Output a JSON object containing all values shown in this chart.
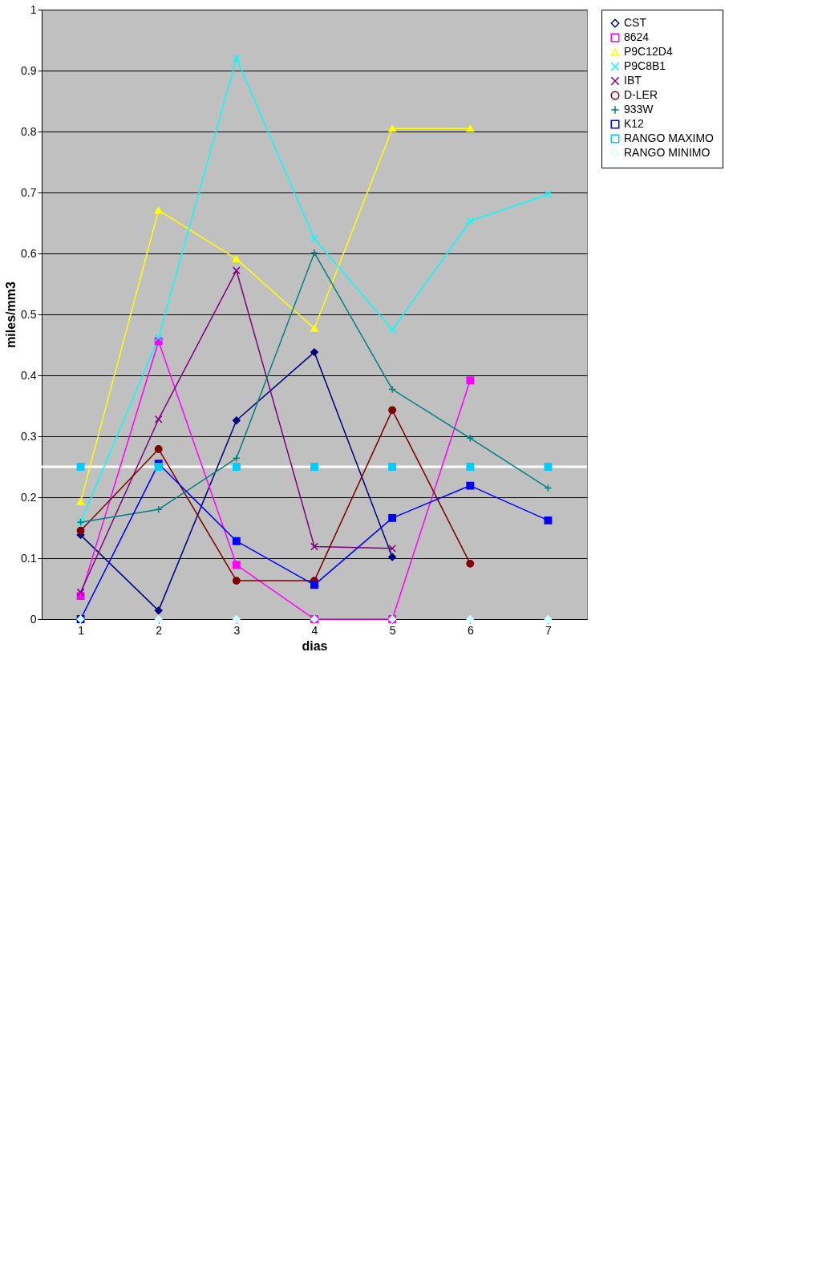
{
  "chart_data": {
    "type": "line",
    "xlabel": "dias",
    "ylabel": "miles/mm3",
    "categories": [
      "1",
      "2",
      "3",
      "4",
      "5",
      "6",
      "7"
    ],
    "ylim": [
      0,
      1
    ],
    "yticks": [
      0,
      0.1,
      0.2,
      0.3,
      0.4,
      0.5,
      0.6,
      0.7,
      0.8,
      0.9,
      1
    ],
    "grid": "y",
    "legend": "right",
    "ref_lines": [
      {
        "axis": "y",
        "value": 0.25,
        "color": "#ffffff"
      }
    ],
    "series": [
      {
        "name": "CST",
        "color": "#000080",
        "marker": "diamond",
        "values": [
          0.138,
          0.014,
          0.326,
          0.438,
          0.102,
          null,
          null
        ]
      },
      {
        "name": "8624",
        "color": "#ff00ff",
        "marker": "square",
        "values": [
          0.038,
          0.456,
          0.089,
          0,
          0,
          0.392,
          null
        ]
      },
      {
        "name": "P9C12D4",
        "color": "#ffff00",
        "marker": "triangle",
        "values": [
          0.193,
          0.671,
          0.591,
          0.477,
          0.805,
          0.805,
          null
        ]
      },
      {
        "name": "P9C8B1",
        "color": "#00ffff",
        "marker": "cross",
        "values": [
          0.159,
          0.462,
          0.92,
          0.624,
          0.475,
          0.653,
          0.697
        ]
      },
      {
        "name": "IBT",
        "color": "#800080",
        "marker": "cross",
        "values": [
          0.044,
          0.328,
          0.572,
          0.119,
          0.116,
          null,
          null
        ]
      },
      {
        "name": "D-LER",
        "color": "#800000",
        "marker": "circle",
        "values": [
          0.145,
          0.279,
          0.063,
          0.063,
          0.343,
          0.091,
          null
        ]
      },
      {
        "name": "933W",
        "color": "#008080",
        "marker": "plus",
        "values": [
          0.159,
          0.18,
          0.264,
          0.601,
          0.377,
          0.297,
          0.215
        ]
      },
      {
        "name": "K12",
        "color": "#0000ff",
        "marker": "square",
        "values": [
          0,
          0.255,
          0.128,
          0.056,
          0.166,
          0.219,
          0.162
        ]
      },
      {
        "name": "RANGO MAXIMO",
        "type": "scatter",
        "color": "#00ccff",
        "marker": "square",
        "values": [
          0.25,
          0.25,
          0.25,
          0.25,
          0.25,
          0.25,
          0.25
        ]
      },
      {
        "name": "RANGO MINIMO",
        "type": "scatter",
        "color": "#ccffff",
        "marker": "diamond",
        "values": [
          0,
          0,
          0,
          0,
          0,
          0,
          0
        ]
      }
    ]
  }
}
